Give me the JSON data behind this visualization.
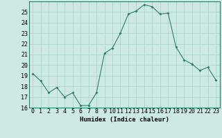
{
  "x": [
    0,
    1,
    2,
    3,
    4,
    5,
    6,
    7,
    8,
    9,
    10,
    11,
    12,
    13,
    14,
    15,
    16,
    17,
    18,
    19,
    20,
    21,
    22,
    23
  ],
  "y": [
    19.2,
    18.5,
    17.4,
    17.9,
    17.0,
    17.4,
    16.2,
    16.2,
    17.4,
    21.1,
    21.6,
    23.0,
    24.8,
    25.1,
    25.7,
    25.5,
    24.8,
    24.9,
    21.7,
    20.5,
    20.1,
    19.5,
    19.8,
    18.6
  ],
  "line_color": "#2e7d6e",
  "marker": "D",
  "marker_size": 2.0,
  "background_color": "#cce9e5",
  "grid_color": "#aed4cf",
  "xlabel": "Humidex (Indice chaleur)",
  "xlabel_fontsize": 6.5,
  "tick_fontsize": 6.0,
  "ylim": [
    16,
    26
  ],
  "yticks": [
    16,
    17,
    18,
    19,
    20,
    21,
    22,
    23,
    24,
    25
  ],
  "xticks": [
    0,
    1,
    2,
    3,
    4,
    5,
    6,
    7,
    8,
    9,
    10,
    11,
    12,
    13,
    14,
    15,
    16,
    17,
    18,
    19,
    20,
    21,
    22,
    23
  ],
  "xlim": [
    -0.5,
    23.5
  ]
}
